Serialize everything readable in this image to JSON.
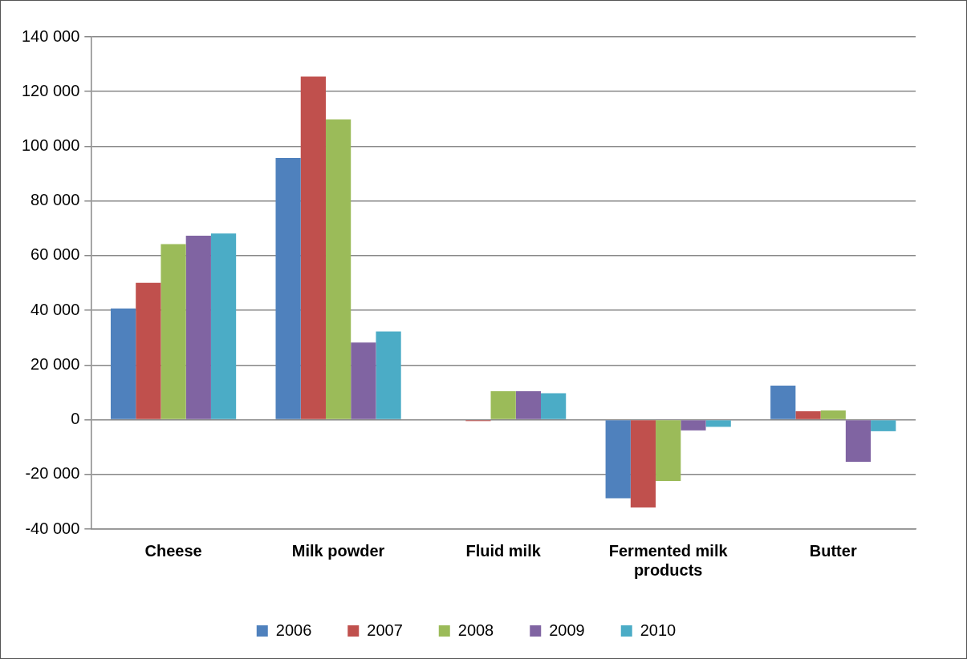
{
  "chart_data": {
    "type": "bar",
    "categories": [
      "Cheese",
      "Milk powder",
      "Fluid milk",
      "Fermented milk products",
      "Butter"
    ],
    "series": [
      {
        "name": "2006",
        "color": "#4f81bd",
        "values": [
          40700,
          95700,
          0,
          -28700,
          12500
        ]
      },
      {
        "name": "2007",
        "color": "#c0504d",
        "values": [
          50100,
          125500,
          -500,
          -32100,
          3100
        ]
      },
      {
        "name": "2008",
        "color": "#9bbb59",
        "values": [
          64200,
          109800,
          10400,
          -22400,
          3400
        ]
      },
      {
        "name": "2009",
        "color": "#8064a2",
        "values": [
          67300,
          28200,
          10400,
          -3900,
          -15400
        ]
      },
      {
        "name": "2010",
        "color": "#4bacc6",
        "values": [
          68100,
          32300,
          9700,
          -2600,
          -4200
        ]
      }
    ],
    "ylim": [
      -40000,
      140000
    ],
    "yticks": [
      {
        "value": -40000,
        "label": "-40 000"
      },
      {
        "value": -20000,
        "label": "-20 000"
      },
      {
        "value": 0,
        "label": "0"
      },
      {
        "value": 20000,
        "label": "20 000"
      },
      {
        "value": 40000,
        "label": "40 000"
      },
      {
        "value": 60000,
        "label": "60 000"
      },
      {
        "value": 80000,
        "label": "80 000"
      },
      {
        "value": 100000,
        "label": "100 000"
      },
      {
        "value": 120000,
        "label": "120 000"
      },
      {
        "value": 140000,
        "label": "140 000"
      }
    ],
    "grid": "y",
    "legend": "bottom"
  }
}
